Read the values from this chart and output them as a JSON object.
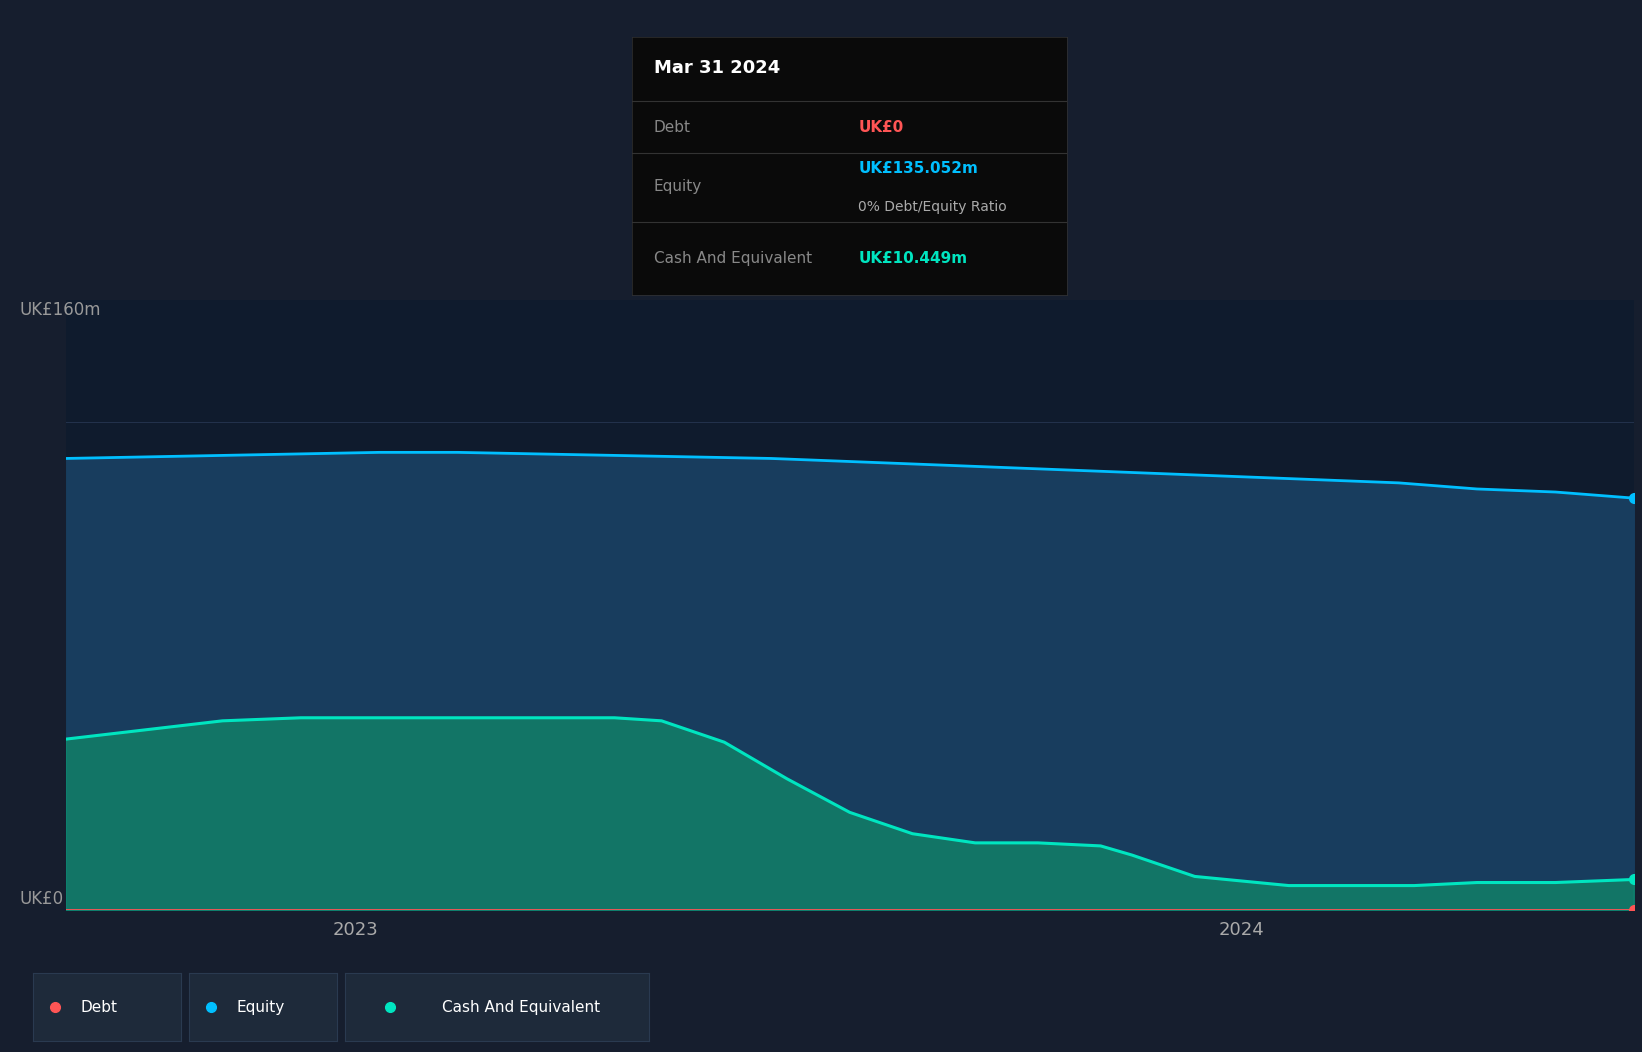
{
  "bg_color": "#161e2e",
  "plot_bg": "#0f1b2d",
  "tooltip_bg": "#0a0a0a",
  "legend_bg": "#1e2a3a",
  "grid_color": "#253550",
  "ylabel_top": "UK£160m",
  "ylabel_bottom": "UK£0",
  "x_ticks": [
    "2023",
    "2024"
  ],
  "x_tick_positions": [
    0.185,
    0.75
  ],
  "tooltip_title": "Mar 31 2024",
  "tooltip_debt_label": "Debt",
  "tooltip_debt_value": "UK£0",
  "tooltip_equity_label": "Equity",
  "tooltip_equity_value": "UK£135.052m",
  "tooltip_ratio": "0% Debt/Equity Ratio",
  "tooltip_cash_label": "Cash And Equivalent",
  "tooltip_cash_value": "UK£10.449m",
  "debt_color": "#ff5555",
  "equity_color": "#00bfff",
  "cash_color": "#00e5c0",
  "equity_fill_color": "#1a3d5c",
  "cash_fill_color": "#1a6060",
  "equity_data_x": [
    0.0,
    0.05,
    0.1,
    0.15,
    0.2,
    0.25,
    0.3,
    0.35,
    0.4,
    0.45,
    0.5,
    0.55,
    0.6,
    0.65,
    0.7,
    0.75,
    0.8,
    0.85,
    0.9,
    0.95,
    1.0
  ],
  "equity_data_y": [
    148,
    148.5,
    149,
    149.5,
    150,
    150,
    149.5,
    149,
    148.5,
    148,
    147,
    146,
    145,
    144,
    143,
    142,
    141,
    140,
    138,
    137,
    135
  ],
  "debt_data_x": [
    0.0,
    1.0
  ],
  "debt_data_y": [
    0.0,
    0.0
  ],
  "cash_data_x": [
    0.0,
    0.05,
    0.1,
    0.15,
    0.2,
    0.25,
    0.3,
    0.35,
    0.38,
    0.42,
    0.46,
    0.5,
    0.54,
    0.58,
    0.62,
    0.66,
    0.68,
    0.72,
    0.78,
    0.82,
    0.86,
    0.9,
    0.95,
    1.0
  ],
  "cash_data_y": [
    56,
    59,
    62,
    63,
    63,
    63,
    63,
    63,
    62,
    55,
    43,
    32,
    25,
    22,
    22,
    21,
    18,
    11,
    8,
    8,
    8,
    9,
    9,
    10
  ],
  "ylim": [
    0,
    200
  ],
  "xlim": [
    0.0,
    1.0
  ]
}
